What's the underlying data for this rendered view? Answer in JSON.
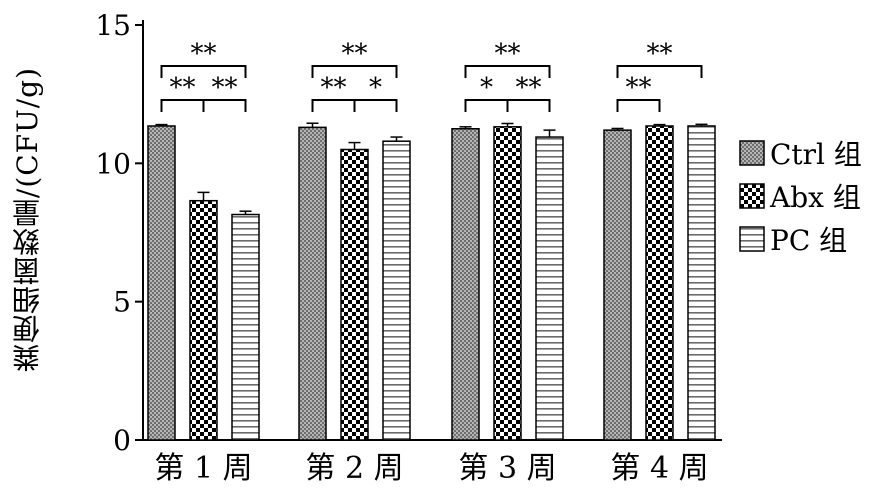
{
  "chart_data": {
    "type": "bar",
    "title": "",
    "xlabel": "",
    "ylabel": "粪便细菌数量/(CFU/g)",
    "ylim": [
      0,
      15
    ],
    "yticks": [
      0,
      5,
      10,
      15
    ],
    "categories": [
      "第 1 周",
      "第 2 周",
      "第 3 周",
      "第 4 周"
    ],
    "series": [
      {
        "name": "Ctrl 组",
        "pattern": "dots",
        "color": "#8c8c8c",
        "values": [
          11.35,
          11.3,
          11.25,
          11.2
        ],
        "errors": [
          0.05,
          0.15,
          0.07,
          0.06
        ]
      },
      {
        "name": "Abx 组",
        "pattern": "checker",
        "color": "#000000",
        "values": [
          8.65,
          10.5,
          11.32,
          11.35
        ],
        "errors": [
          0.3,
          0.25,
          0.12,
          0.05
        ]
      },
      {
        "name": "PC 组",
        "pattern": "stripes",
        "color": "#777777",
        "values": [
          8.15,
          10.8,
          10.95,
          11.35
        ],
        "errors": [
          0.12,
          0.15,
          0.25,
          0.06
        ]
      }
    ],
    "legend_position": "right",
    "significance": [
      {
        "category": 0,
        "from": 0,
        "to": 2,
        "label": "**",
        "level": 3
      },
      {
        "category": 0,
        "from": 0,
        "to": 1,
        "label": "**",
        "level": 2
      },
      {
        "category": 0,
        "from": 1,
        "to": 2,
        "label": "**",
        "level": 2
      },
      {
        "category": 1,
        "from": 0,
        "to": 2,
        "label": "**",
        "level": 3
      },
      {
        "category": 1,
        "from": 0,
        "to": 1,
        "label": "**",
        "level": 2
      },
      {
        "category": 1,
        "from": 1,
        "to": 2,
        "label": "*",
        "level": 2
      },
      {
        "category": 2,
        "from": 0,
        "to": 2,
        "label": "**",
        "level": 3
      },
      {
        "category": 2,
        "from": 0,
        "to": 1,
        "label": "*",
        "level": 2
      },
      {
        "category": 2,
        "from": 1,
        "to": 2,
        "label": "**",
        "level": 2
      },
      {
        "category": 3,
        "from": 0,
        "to": 2,
        "label": "**",
        "level": 3
      },
      {
        "category": 3,
        "from": 0,
        "to": 1,
        "label": "**",
        "level": 2
      }
    ]
  }
}
